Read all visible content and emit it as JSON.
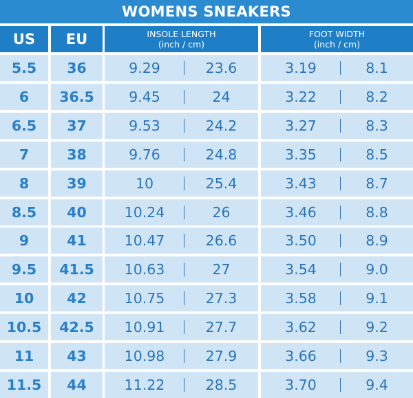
{
  "title": "WOMENS SNEAKERS",
  "headers": {
    "us": "US",
    "eu": "EU",
    "insole_title": "INSOLE LENGTH",
    "insole_units": "(inch / cm)",
    "width_title": "FOOT WIDTH",
    "width_units": "(inch / cm)"
  },
  "rows": [
    {
      "us": "5.5",
      "eu": "36",
      "insole_in": "9.29",
      "insole_cm": "23.6",
      "width_in": "3.19",
      "width_cm": "8.1"
    },
    {
      "us": "6",
      "eu": "36.5",
      "insole_in": "9.45",
      "insole_cm": "24",
      "width_in": "3.22",
      "width_cm": "8.2"
    },
    {
      "us": "6.5",
      "eu": "37",
      "insole_in": "9.53",
      "insole_cm": "24.2",
      "width_in": "3.27",
      "width_cm": "8.3"
    },
    {
      "us": "7",
      "eu": "38",
      "insole_in": "9.76",
      "insole_cm": "24.8",
      "width_in": "3.35",
      "width_cm": "8.5"
    },
    {
      "us": "8",
      "eu": "39",
      "insole_in": "10",
      "insole_cm": "25.4",
      "width_in": "3.43",
      "width_cm": "8.7"
    },
    {
      "us": "8.5",
      "eu": "40",
      "insole_in": "10.24",
      "insole_cm": "26",
      "width_in": "3.46",
      "width_cm": "8.8"
    },
    {
      "us": "9",
      "eu": "41",
      "insole_in": "10.47",
      "insole_cm": "26.6",
      "width_in": "3.50",
      "width_cm": "8.9"
    },
    {
      "us": "9.5",
      "eu": "41.5",
      "insole_in": "10.63",
      "insole_cm": "27",
      "width_in": "3.54",
      "width_cm": "9.0"
    },
    {
      "us": "10",
      "eu": "42",
      "insole_in": "10.75",
      "insole_cm": "27.3",
      "width_in": "3.58",
      "width_cm": "9.1"
    },
    {
      "us": "10.5",
      "eu": "42.5",
      "insole_in": "10.91",
      "insole_cm": "27.7",
      "width_in": "3.62",
      "width_cm": "9.2"
    },
    {
      "us": "11",
      "eu": "43",
      "insole_in": "10.98",
      "insole_cm": "27.9",
      "width_in": "3.66",
      "width_cm": "9.3"
    },
    {
      "us": "11.5",
      "eu": "44",
      "insole_in": "11.22",
      "insole_cm": "28.5",
      "width_in": "3.70",
      "width_cm": "9.4"
    }
  ],
  "chart_data": {
    "type": "table",
    "title": "WOMENS SNEAKERS",
    "columns": [
      "US",
      "EU",
      "INSOLE LENGTH (inch)",
      "INSOLE LENGTH (cm)",
      "FOOT WIDTH (inch)",
      "FOOT WIDTH (cm)"
    ],
    "values": [
      [
        5.5,
        36,
        9.29,
        23.6,
        3.19,
        8.1
      ],
      [
        6,
        36.5,
        9.45,
        24,
        3.22,
        8.2
      ],
      [
        6.5,
        37,
        9.53,
        24.2,
        3.27,
        8.3
      ],
      [
        7,
        38,
        9.76,
        24.8,
        3.35,
        8.5
      ],
      [
        8,
        39,
        10,
        25.4,
        3.43,
        8.7
      ],
      [
        8.5,
        40,
        10.24,
        26,
        3.46,
        8.8
      ],
      [
        9,
        41,
        10.47,
        26.6,
        3.5,
        8.9
      ],
      [
        9.5,
        41.5,
        10.63,
        27,
        3.54,
        9.0
      ],
      [
        10,
        42,
        10.75,
        27.3,
        3.58,
        9.1
      ],
      [
        10.5,
        42.5,
        10.91,
        27.7,
        3.62,
        9.2
      ],
      [
        11,
        43,
        10.98,
        27.9,
        3.66,
        9.3
      ],
      [
        11.5,
        44,
        11.22,
        28.5,
        3.7,
        9.4
      ]
    ]
  },
  "colors": {
    "title_bg": "#2a8bd0",
    "header_bg": "#1f7fc6",
    "cell_bg": "#cfe5f6",
    "text": "#2b74b6"
  }
}
